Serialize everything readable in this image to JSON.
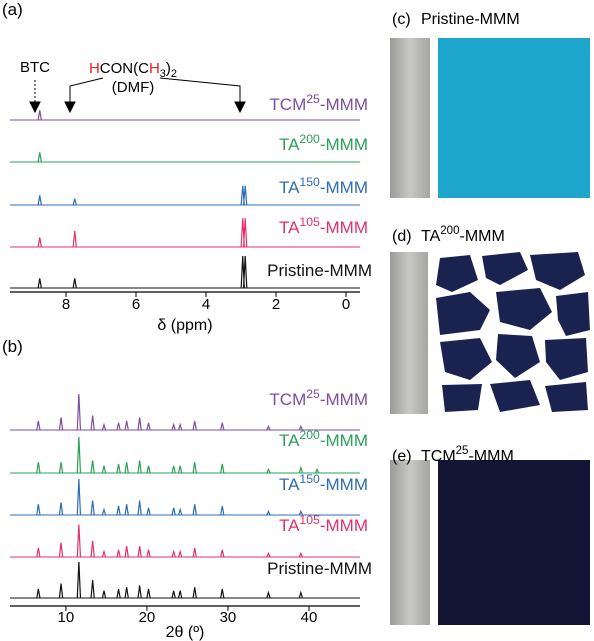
{
  "chart_data": [
    {
      "type": "spectrum",
      "panel_label": "(a)",
      "xlabel": "δ (ppm)",
      "xlim": [
        9.6,
        -0.4
      ],
      "xticks": [
        8,
        6,
        4,
        2,
        0
      ],
      "annotations": {
        "btc": "BTC",
        "dmf_formula": [
          "H",
          "CON(C",
          "H",
          "3",
          ")",
          "2"
        ],
        "dmf": "(DMF)"
      },
      "series": [
        {
          "name": [
            "TCM",
            "25",
            "-MMM"
          ],
          "color": "#7b4fa0",
          "peaks": [
            [
              8.75,
              0.3
            ]
          ]
        },
        {
          "name": [
            "TA",
            "200",
            "-MMM"
          ],
          "color": "#2aa05a",
          "peaks": [
            [
              8.75,
              0.3
            ]
          ]
        },
        {
          "name": [
            "TA",
            "150",
            "-MMM"
          ],
          "color": "#2d6db5",
          "peaks": [
            [
              8.75,
              0.3
            ],
            [
              7.75,
              0.2
            ],
            [
              2.95,
              0.6
            ],
            [
              2.88,
              0.6
            ]
          ]
        },
        {
          "name": [
            "TA",
            "105",
            "-MMM"
          ],
          "color": "#e0306e",
          "peaks": [
            [
              8.75,
              0.3
            ],
            [
              7.75,
              0.5
            ],
            [
              2.95,
              0.9
            ],
            [
              2.88,
              0.9
            ]
          ]
        },
        {
          "name": [
            "Pristine-MMM"
          ],
          "color": "#111111",
          "peaks": [
            [
              8.75,
              0.3
            ],
            [
              7.75,
              0.3
            ],
            [
              2.95,
              1
            ],
            [
              2.88,
              1
            ]
          ]
        }
      ]
    },
    {
      "type": "spectrum",
      "panel_label": "(b)",
      "xlabel": "2θ (º)",
      "xlim": [
        3.1,
        46.3
      ],
      "xticks": [
        10,
        20,
        30,
        40
      ],
      "series": [
        {
          "name": [
            "TCM",
            "25",
            "-MMM"
          ],
          "color": "#7b4fa0",
          "peaks": [
            [
              6.6,
              0.25
            ],
            [
              9.4,
              0.35
            ],
            [
              11.6,
              1
            ],
            [
              13.3,
              0.4
            ],
            [
              14.7,
              0.15
            ],
            [
              16.5,
              0.2
            ],
            [
              17.5,
              0.25
            ],
            [
              19.1,
              0.35
            ],
            [
              20.2,
              0.2
            ],
            [
              23.3,
              0.15
            ],
            [
              24.1,
              0.15
            ],
            [
              25.9,
              0.25
            ],
            [
              29.3,
              0.2
            ],
            [
              35,
              0.1
            ],
            [
              39,
              0.1
            ]
          ]
        },
        {
          "name": [
            "TA",
            "200",
            "-MMM"
          ],
          "color": "#2aa05a",
          "peaks": [
            [
              6.6,
              0.3
            ],
            [
              9.4,
              0.3
            ],
            [
              11.6,
              1
            ],
            [
              13.3,
              0.35
            ],
            [
              14.7,
              0.2
            ],
            [
              16.5,
              0.25
            ],
            [
              17.5,
              0.3
            ],
            [
              19.1,
              0.35
            ],
            [
              20.2,
              0.2
            ],
            [
              23.3,
              0.2
            ],
            [
              24.1,
              0.2
            ],
            [
              25.9,
              0.3
            ],
            [
              29.3,
              0.25
            ],
            [
              35,
              0.1
            ],
            [
              39,
              0.15
            ],
            [
              41,
              0.1
            ]
          ]
        },
        {
          "name": [
            "TA",
            "150",
            "-MMM"
          ],
          "color": "#2d6db5",
          "peaks": [
            [
              6.6,
              0.3
            ],
            [
              9.4,
              0.35
            ],
            [
              11.6,
              1
            ],
            [
              13.3,
              0.4
            ],
            [
              14.7,
              0.15
            ],
            [
              16.5,
              0.25
            ],
            [
              17.5,
              0.3
            ],
            [
              19.1,
              0.4
            ],
            [
              20.2,
              0.2
            ],
            [
              23.3,
              0.2
            ],
            [
              24.1,
              0.15
            ],
            [
              25.9,
              0.3
            ],
            [
              29.3,
              0.25
            ],
            [
              35,
              0.1
            ],
            [
              39,
              0.1
            ]
          ]
        },
        {
          "name": [
            "TA",
            "105",
            "-MMM"
          ],
          "color": "#e0306e",
          "peaks": [
            [
              6.6,
              0.25
            ],
            [
              9.4,
              0.4
            ],
            [
              11.6,
              0.9
            ],
            [
              13.3,
              0.45
            ],
            [
              14.7,
              0.15
            ],
            [
              16.5,
              0.2
            ],
            [
              17.5,
              0.3
            ],
            [
              19.1,
              0.3
            ],
            [
              20.2,
              0.2
            ],
            [
              23.3,
              0.15
            ],
            [
              24.1,
              0.15
            ],
            [
              25.9,
              0.25
            ],
            [
              29.3,
              0.2
            ],
            [
              35,
              0.1
            ],
            [
              39,
              0.1
            ]
          ]
        },
        {
          "name": [
            "Pristine-MMM"
          ],
          "color": "#111111",
          "peaks": [
            [
              6.6,
              0.25
            ],
            [
              9.4,
              0.4
            ],
            [
              11.6,
              1
            ],
            [
              13.3,
              0.5
            ],
            [
              14.7,
              0.2
            ],
            [
              16.5,
              0.25
            ],
            [
              17.5,
              0.3
            ],
            [
              19.1,
              0.35
            ],
            [
              20.2,
              0.25
            ],
            [
              23.3,
              0.2
            ],
            [
              24.1,
              0.2
            ],
            [
              25.9,
              0.3
            ],
            [
              29.3,
              0.25
            ],
            [
              35,
              0.15
            ],
            [
              39,
              0.15
            ]
          ]
        }
      ]
    }
  ],
  "photos": [
    {
      "label": "(c)",
      "title": [
        "Pristine-MMM"
      ]
    },
    {
      "label": "(d)",
      "title": [
        "TA",
        "200",
        "-MMM"
      ]
    },
    {
      "label": "(e)",
      "title": [
        "TCM",
        "25",
        "-MMM"
      ]
    }
  ]
}
